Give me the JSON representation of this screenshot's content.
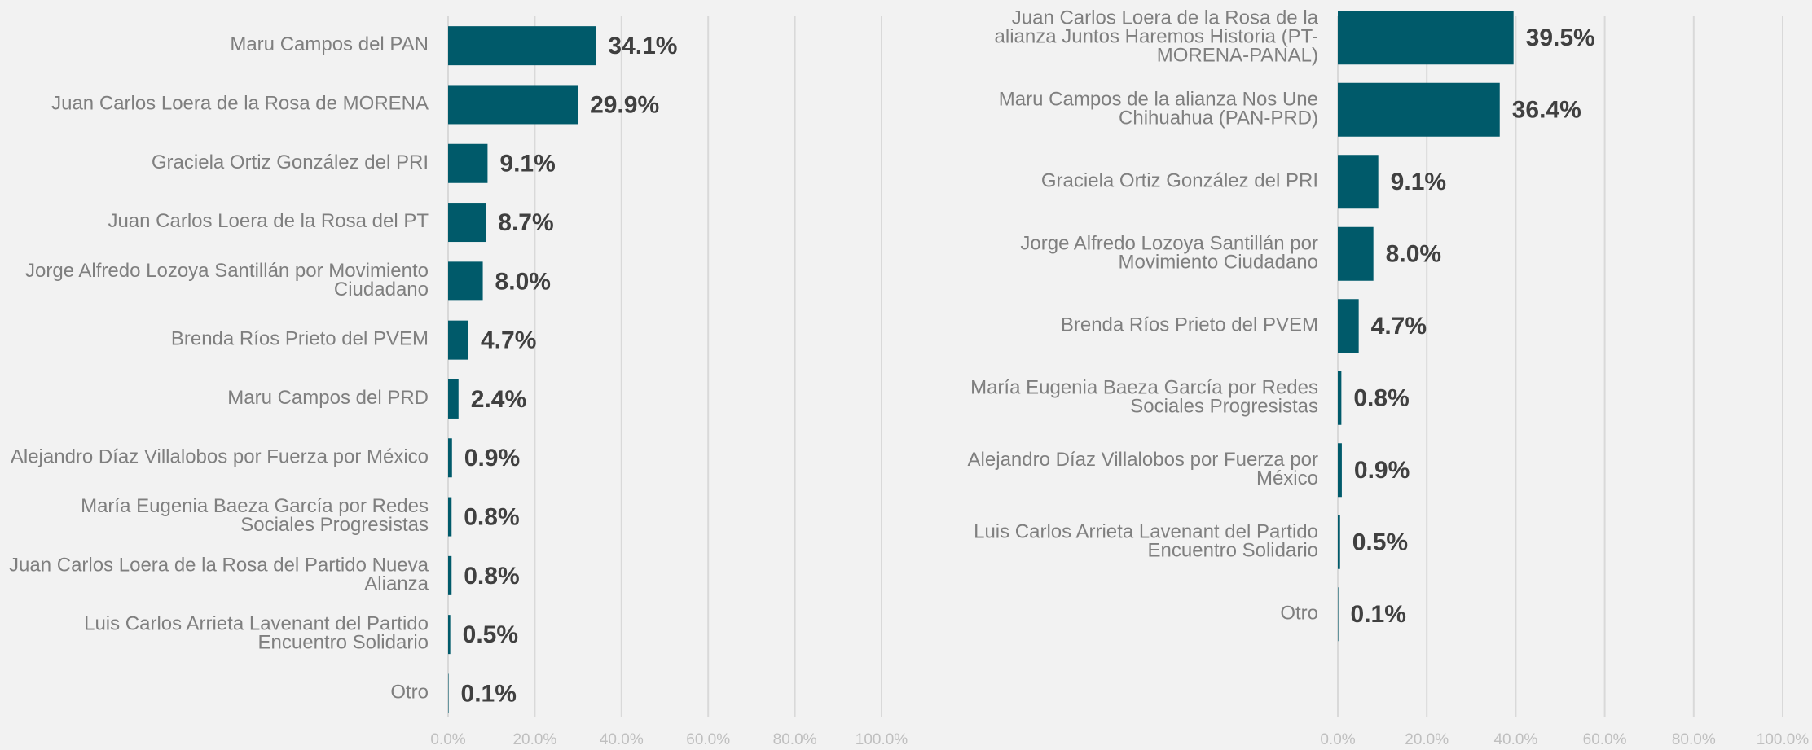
{
  "chart_data": [
    {
      "type": "bar",
      "orientation": "horizontal",
      "color": "#005a6a",
      "grid": true,
      "categories": [
        "Maru Campos del PAN",
        "Juan Carlos Loera de la Rosa de MORENA",
        "Graciela Ortiz González del PRI",
        "Juan Carlos Loera de la Rosa del PT",
        "Jorge Alfredo Lozoya Santillán por Movimiento Ciudadano",
        "Brenda Ríos Prieto del PVEM",
        "Maru Campos del PRD",
        "Alejandro Díaz Villalobos por Fuerza por México",
        "María Eugenia Baeza García por Redes Sociales Progresistas",
        "Juan Carlos Loera de la Rosa del Partido Nueva Alianza",
        "Luis Carlos Arrieta Lavenant del Partido Encuentro Solidario",
        "Otro"
      ],
      "values": [
        34.1,
        29.9,
        9.1,
        8.7,
        8.0,
        4.7,
        2.4,
        0.9,
        0.8,
        0.8,
        0.5,
        0.1
      ],
      "value_labels": [
        "34.1%",
        "29.9%",
        "9.1%",
        "8.7%",
        "8.0%",
        "4.7%",
        "2.4%",
        "0.9%",
        "0.8%",
        "0.8%",
        "0.5%",
        "0.1%"
      ],
      "xlim": [
        0,
        100
      ],
      "xticks": [
        {
          "value": 0,
          "label": "0.0%"
        },
        {
          "value": 20,
          "label": "20.0%"
        },
        {
          "value": 40,
          "label": "40.0%"
        },
        {
          "value": 60,
          "label": "60.0%"
        },
        {
          "value": 80,
          "label": "80.0%"
        },
        {
          "value": 100,
          "label": "100.0%"
        }
      ]
    },
    {
      "type": "bar",
      "orientation": "horizontal",
      "color": "#005a6a",
      "grid": true,
      "categories": [
        "Juan Carlos Loera de la Rosa de la alianza Juntos Haremos Historia (PT-MORENA-PANAL)",
        "Maru Campos de la alianza Nos Une Chihuahua (PAN-PRD)",
        "Graciela Ortiz González del PRI",
        "Jorge Alfredo Lozoya Santillán por Movimiento Ciudadano",
        "Brenda Ríos Prieto del PVEM",
        "María Eugenia Baeza García por Redes Sociales Progresistas",
        "Alejandro Díaz Villalobos por Fuerza por México",
        "Luis Carlos Arrieta Lavenant del Partido Encuentro Solidario",
        "Otro"
      ],
      "values": [
        39.5,
        36.4,
        9.1,
        8.0,
        4.7,
        0.8,
        0.9,
        0.5,
        0.1
      ],
      "value_labels": [
        "39.5%",
        "36.4%",
        "9.1%",
        "8.0%",
        "4.7%",
        "0.8%",
        "0.9%",
        "0.5%",
        "0.1%"
      ],
      "xlim": [
        0,
        100
      ],
      "xticks": [
        {
          "value": 0,
          "label": "0.0%"
        },
        {
          "value": 20,
          "label": "20.0%"
        },
        {
          "value": 40,
          "label": "40.0%"
        },
        {
          "value": 60,
          "label": "60.0%"
        },
        {
          "value": 80,
          "label": "80.0%"
        },
        {
          "value": 100,
          "label": "100.0%"
        }
      ]
    }
  ]
}
